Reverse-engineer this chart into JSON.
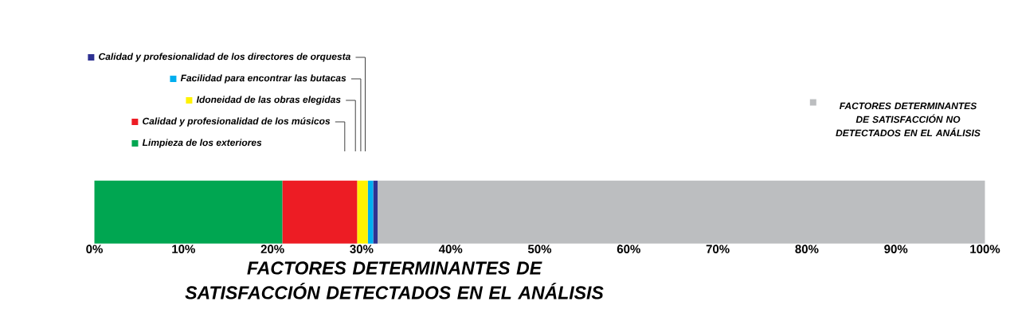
{
  "chart_data": {
    "type": "bar",
    "orientation": "horizontal",
    "stacked": true,
    "legend": "top left",
    "xlabel": "FACTORES DETERMINANTES DE SATISFACCIÓN DETECTADOS EN EL ANÁLISIS",
    "categories": [
      null
    ],
    "xlim": [
      0,
      100
    ],
    "xticks": [
      {
        "value": 0,
        "label": "0%"
      },
      {
        "value": 10,
        "label": "10%"
      },
      {
        "value": 20,
        "label": "20%"
      },
      {
        "value": 30,
        "label": "30%"
      },
      {
        "value": 40,
        "label": "40%"
      },
      {
        "value": 50,
        "label": "50%"
      },
      {
        "value": 60,
        "label": "60%"
      },
      {
        "value": 70,
        "label": "70%"
      },
      {
        "value": 80,
        "label": "80%"
      },
      {
        "value": 90,
        "label": "90%"
      },
      {
        "value": 100,
        "label": "100%"
      }
    ],
    "series": [
      {
        "name": "Limpieza de los exteriores",
        "color": "#00a651",
        "values": [
          21.1
        ]
      },
      {
        "name": "Calidad y profesionalidad de los músicos",
        "color": "#ed1c24",
        "values": [
          8.4
        ]
      },
      {
        "name": "Idoneidad de las obras elegidas",
        "color": "#fff200",
        "values": [
          1.2
        ]
      },
      {
        "name": "Facilidad para encontrar las butacas",
        "color": "#00aeef",
        "values": [
          0.6
        ]
      },
      {
        "name": "Calidad y profesionalidad de los directores de orquesta",
        "color": "#2e3192",
        "values": [
          0.5
        ]
      },
      {
        "name": "FACTORES DETERMINANTES DE SATISFACCIÓN NO DETECTADOS EN EL ANÁLISIS",
        "color": "#bcbec0",
        "values": [
          68.2
        ]
      }
    ]
  }
}
